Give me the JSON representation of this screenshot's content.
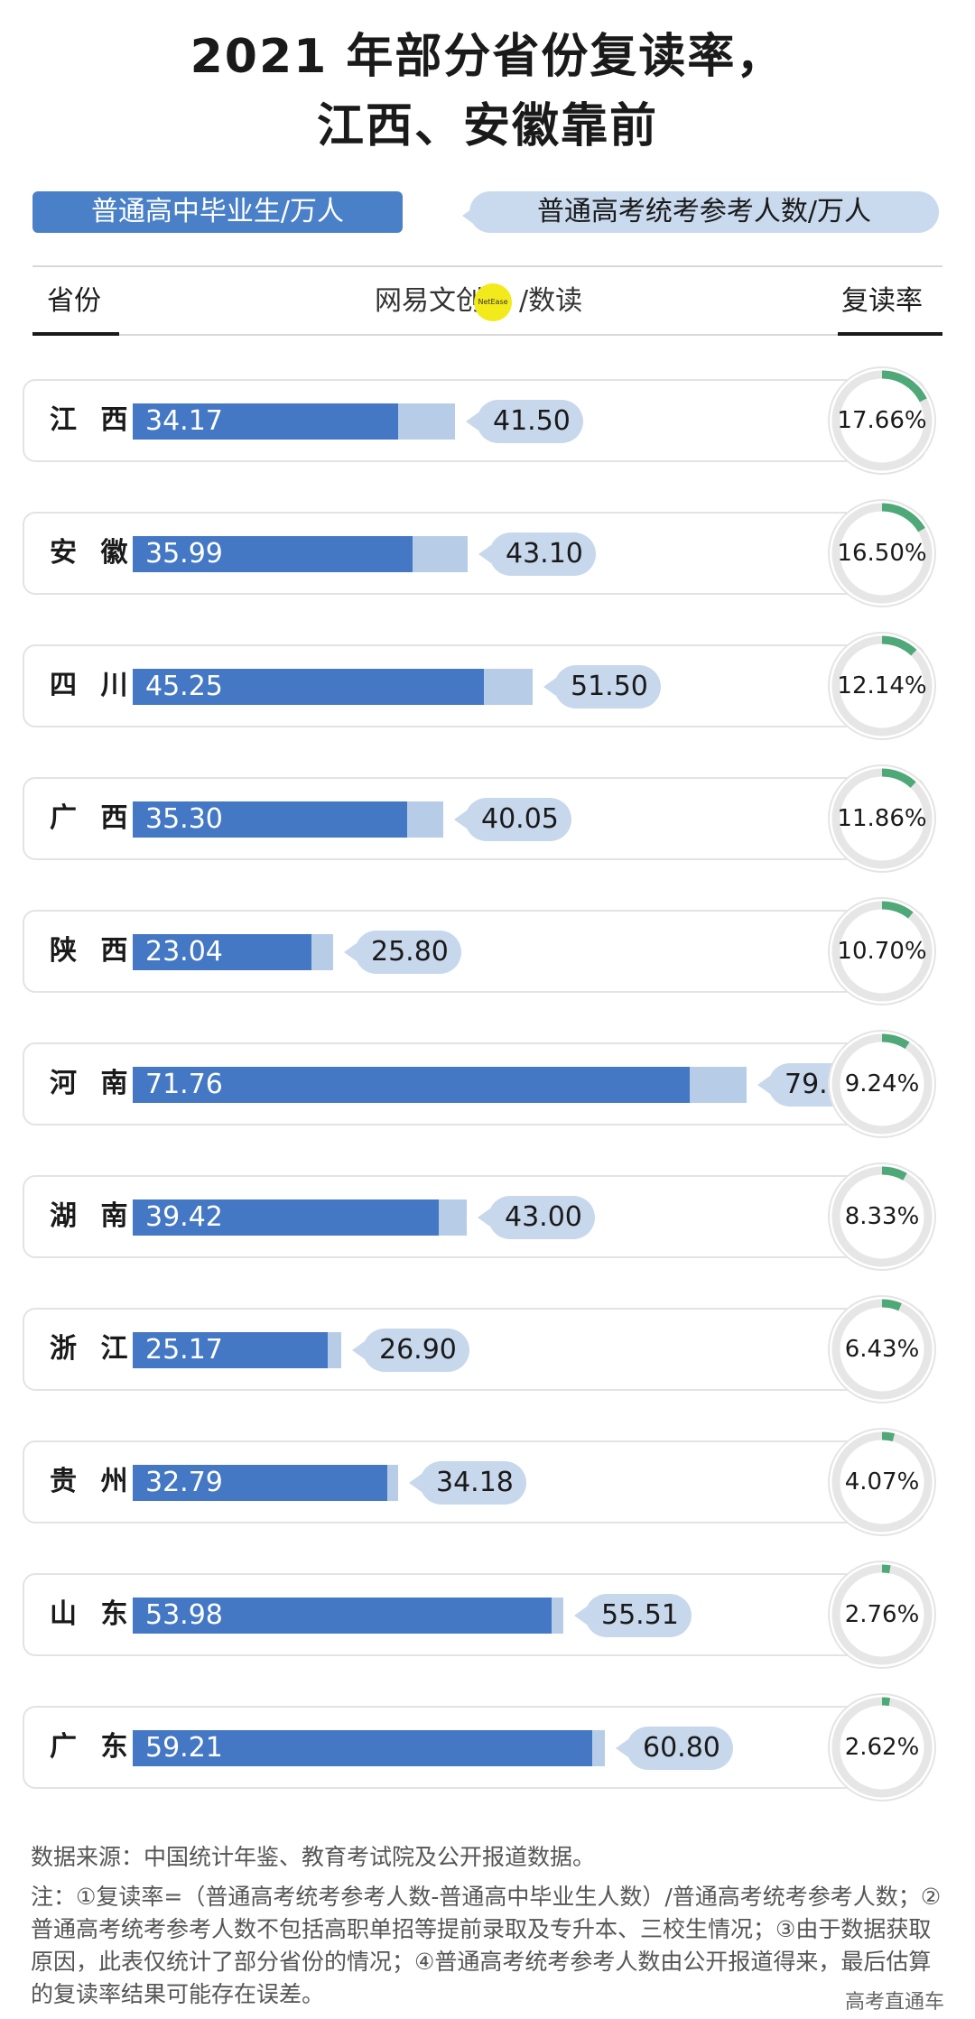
{
  "chart_data": {
    "type": "bar",
    "title": "2021 年部分省份复读率，",
    "subtitle": "江西、安徽靠前",
    "series": [
      {
        "name": "普通高中毕业生/万人",
        "values": [
          34.17,
          35.99,
          45.25,
          35.3,
          23.04,
          71.76,
          39.42,
          25.17,
          32.79,
          53.98,
          59.21
        ]
      },
      {
        "name": "普通高考统考参考人数/万人",
        "values": [
          41.5,
          43.1,
          51.5,
          40.05,
          25.8,
          79.07,
          43.0,
          26.9,
          34.18,
          55.51,
          60.8
        ]
      }
    ],
    "categories": [
      "江西",
      "安徽",
      "四川",
      "广西",
      "陕西",
      "河南",
      "湖南",
      "浙江",
      "贵州",
      "山东",
      "广东"
    ],
    "rates": [
      17.66,
      16.5,
      12.14,
      11.86,
      10.7,
      9.24,
      8.33,
      6.43,
      4.07,
      2.76,
      2.62
    ],
    "rows": [
      {
        "province": "江 西",
        "grad": "34.17",
        "exam": "41.50",
        "rate": "17.66%"
      },
      {
        "province": "安 徽",
        "grad": "35.99",
        "exam": "43.10",
        "rate": "16.50%"
      },
      {
        "province": "四 川",
        "grad": "45.25",
        "exam": "51.50",
        "rate": "12.14%"
      },
      {
        "province": "广 西",
        "grad": "35.30",
        "exam": "40.05",
        "rate": "11.86%"
      },
      {
        "province": "陕 西",
        "grad": "23.04",
        "exam": "25.80",
        "rate": "10.70%"
      },
      {
        "province": "河 南",
        "grad": "71.76",
        "exam": "79.07",
        "rate": "9.24%"
      },
      {
        "province": "湖 南",
        "grad": "39.42",
        "exam": "43.00",
        "rate": "8.33%"
      },
      {
        "province": "浙 江",
        "grad": "25.17",
        "exam": "26.90",
        "rate": "6.43%"
      },
      {
        "province": "贵 州",
        "grad": "32.79",
        "exam": "34.18",
        "rate": "4.07%"
      },
      {
        "province": "山 东",
        "grad": "53.98",
        "exam": "55.51",
        "rate": "2.76%"
      },
      {
        "province": "广 东",
        "grad": "59.21",
        "exam": "60.80",
        "rate": "2.62%"
      }
    ],
    "colors": {
      "graduates": "#4478c5",
      "exam_takers": "#b7cde7",
      "pill": "#c7d7ec",
      "rate_arc": "#4fa878",
      "ring": "#e6e6e6"
    }
  },
  "legend": {
    "graduates": "普通高中毕业生/万人",
    "exam_takers": "普通高考统考参考人数/万人"
  },
  "header": {
    "province": "省份",
    "rate": "复读率",
    "credit": "网易文创",
    "credit_logo": "NetEase",
    "credit_suffix": "/数读"
  },
  "footer": {
    "source": "数据来源：中国统计年鉴、教育考试院及公开报道数据。",
    "note": "注：①复读率=（普通高考统考参考人数-普通高中毕业生人数）/普通高考统考参考人数；②普通高考统考参考人数不包括高职单招等提前录取及专升本、三校生情况；③由于数据获取原因，此表仅统计了部分省份的情况；④普通高考统考参考人数由公开报道得来，最后估算的复读率结果可能存在误差。",
    "brand": "高考直通车"
  }
}
